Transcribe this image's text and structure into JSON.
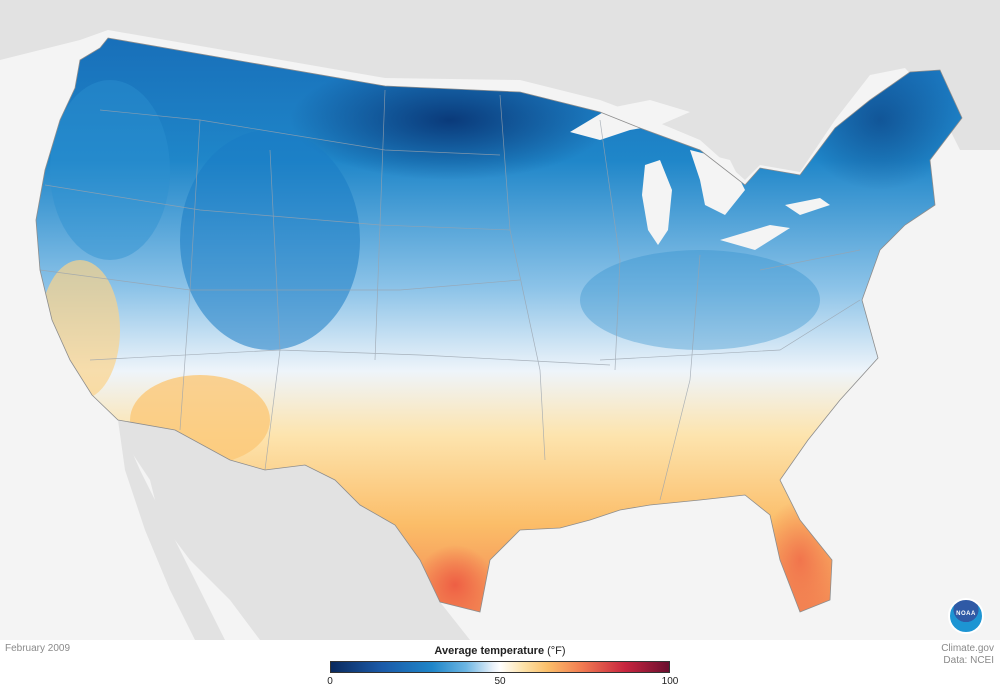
{
  "map": {
    "date_label": "February 2009",
    "credit_line1": "Climate.gov",
    "credit_line2": "Data: NCEI",
    "logo_text": "NOAA",
    "legend": {
      "title_bold": "Average temperature",
      "title_unit": "(°F)",
      "ticks": [
        "0",
        "50",
        "100"
      ],
      "min": 0,
      "max": 100
    },
    "colors": {
      "cold_extreme": "#0a2a5e",
      "cold": "#1f86c9",
      "neutral": "#ffffff",
      "warm": "#fbbf6a",
      "hot": "#f27d52",
      "hot_extreme": "#6b0f2f",
      "land_outside": "#e2e2e2",
      "water": "#f4f4f4"
    }
  }
}
